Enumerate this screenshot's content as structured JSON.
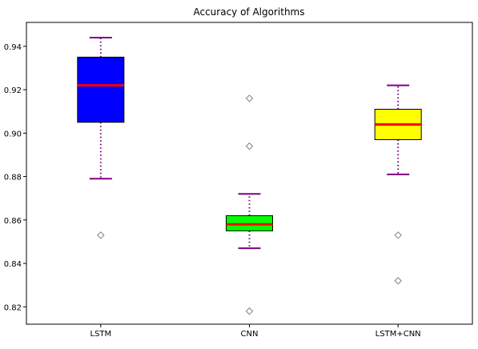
{
  "chart_data": {
    "type": "box",
    "title": "Accuracy of Algorithms",
    "xlabel": "",
    "ylabel": "",
    "categories": [
      "LSTM",
      "CNN",
      "LSTM+CNN"
    ],
    "ylim": [
      0.812,
      0.951
    ],
    "yticks": [
      0.82,
      0.84,
      0.86,
      0.88,
      0.9,
      0.92,
      0.94
    ],
    "ytick_labels": [
      "0.82",
      "0.84",
      "0.86",
      "0.88",
      "0.90",
      "0.92",
      "0.94"
    ],
    "grid": false,
    "boxes": [
      {
        "category": "LSTM",
        "whisker_low": 0.879,
        "q1": 0.905,
        "median": 0.922,
        "q3": 0.935,
        "whisker_high": 0.944,
        "outliers": [
          0.853
        ],
        "fill": "#0000ff"
      },
      {
        "category": "CNN",
        "whisker_low": 0.847,
        "q1": 0.855,
        "median": 0.858,
        "q3": 0.862,
        "whisker_high": 0.872,
        "outliers": [
          0.916,
          0.894,
          0.818
        ],
        "fill": "#00ff00"
      },
      {
        "category": "LSTM+CNN",
        "whisker_low": 0.881,
        "q1": 0.897,
        "median": 0.904,
        "q3": 0.911,
        "whisker_high": 0.922,
        "outliers": [
          0.853,
          0.832
        ],
        "fill": "#ffff00"
      }
    ],
    "colors": {
      "median": "#ff0000",
      "whisker": "#800080",
      "box_edge": "#000000",
      "outlier_edge": "#808080"
    }
  }
}
